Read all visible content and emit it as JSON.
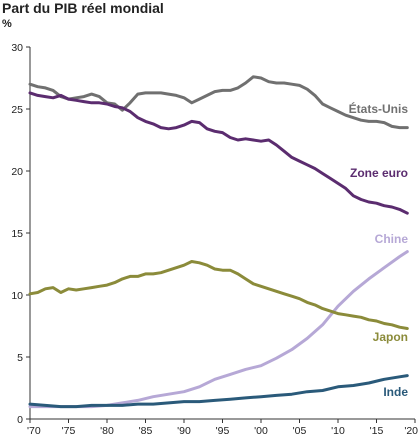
{
  "chart_data": {
    "type": "line",
    "title": "Part du PIB réel mondial",
    "ylabel": "%",
    "ylim": [
      0,
      30
    ],
    "y_ticks": [
      "0",
      "5",
      "10",
      "15",
      "20",
      "25",
      "30"
    ],
    "xlim": [
      1970,
      2020
    ],
    "x_ticks": [
      {
        "value": 1970,
        "label": "'70"
      },
      {
        "value": 1975,
        "label": "'75"
      },
      {
        "value": 1980,
        "label": "'80"
      },
      {
        "value": 1985,
        "label": "'85"
      },
      {
        "value": 1990,
        "label": "'90"
      },
      {
        "value": 1995,
        "label": "'95"
      },
      {
        "value": 2000,
        "label": "'00"
      },
      {
        "value": 2005,
        "label": "'05"
      },
      {
        "value": 2010,
        "label": "'10"
      },
      {
        "value": 2015,
        "label": "'15"
      },
      {
        "value": 2020,
        "label": "'20"
      }
    ],
    "grid": false,
    "legend": "inline labels at right",
    "series": [
      {
        "name": "États-Unis",
        "color": "#707070",
        "x": [
          1970,
          1971,
          1972,
          1973,
          1974,
          1975,
          1976,
          1977,
          1978,
          1979,
          1980,
          1981,
          1982,
          1983,
          1984,
          1985,
          1986,
          1987,
          1988,
          1989,
          1990,
          1991,
          1992,
          1993,
          1994,
          1995,
          1996,
          1997,
          1998,
          1999,
          2000,
          2001,
          2002,
          2003,
          2004,
          2005,
          2006,
          2007,
          2008,
          2009,
          2010,
          2011,
          2012,
          2013,
          2014,
          2015,
          2016,
          2017,
          2018,
          2019
        ],
        "y": [
          27.0,
          26.8,
          26.7,
          26.5,
          26.0,
          25.8,
          25.9,
          26.0,
          26.2,
          26.0,
          25.5,
          25.4,
          24.9,
          25.5,
          26.2,
          26.3,
          26.3,
          26.3,
          26.2,
          26.1,
          25.9,
          25.5,
          25.8,
          26.1,
          26.4,
          26.5,
          26.5,
          26.7,
          27.1,
          27.6,
          27.5,
          27.2,
          27.1,
          27.1,
          27.0,
          26.9,
          26.6,
          26.1,
          25.4,
          25.1,
          24.8,
          24.5,
          24.3,
          24.1,
          24.0,
          24.0,
          23.9,
          23.6,
          23.5,
          23.5
        ]
      },
      {
        "name": "Zone euro",
        "color": "#5b2c6f",
        "x": [
          1970,
          1971,
          1972,
          1973,
          1974,
          1975,
          1976,
          1977,
          1978,
          1979,
          1980,
          1981,
          1982,
          1983,
          1984,
          1985,
          1986,
          1987,
          1988,
          1989,
          1990,
          1991,
          1992,
          1993,
          1994,
          1995,
          1996,
          1997,
          1998,
          1999,
          2000,
          2001,
          2002,
          2003,
          2004,
          2005,
          2006,
          2007,
          2008,
          2009,
          2010,
          2011,
          2012,
          2013,
          2014,
          2015,
          2016,
          2017,
          2018,
          2019
        ],
        "y": [
          26.3,
          26.1,
          26.0,
          25.9,
          26.1,
          25.8,
          25.7,
          25.6,
          25.5,
          25.5,
          25.4,
          25.2,
          25.1,
          24.8,
          24.3,
          24.0,
          23.8,
          23.5,
          23.4,
          23.5,
          23.7,
          24.0,
          23.9,
          23.4,
          23.2,
          23.1,
          22.7,
          22.5,
          22.6,
          22.5,
          22.4,
          22.5,
          22.1,
          21.6,
          21.1,
          20.8,
          20.5,
          20.2,
          19.8,
          19.4,
          19.0,
          18.6,
          18.0,
          17.7,
          17.5,
          17.4,
          17.2,
          17.1,
          16.9,
          16.6
        ]
      },
      {
        "name": "Chine",
        "color": "#b6a8d6",
        "x": [
          1970,
          1972,
          1974,
          1976,
          1978,
          1980,
          1982,
          1984,
          1986,
          1988,
          1990,
          1992,
          1994,
          1996,
          1998,
          2000,
          2002,
          2004,
          2006,
          2008,
          2010,
          2012,
          2014,
          2016,
          2018,
          2019
        ],
        "y": [
          1.0,
          1.0,
          1.0,
          1.0,
          1.0,
          1.1,
          1.3,
          1.5,
          1.8,
          2.0,
          2.2,
          2.6,
          3.2,
          3.6,
          4.0,
          4.3,
          4.9,
          5.6,
          6.5,
          7.6,
          9.1,
          10.3,
          11.3,
          12.2,
          13.1,
          13.5
        ]
      },
      {
        "name": "Japon",
        "color": "#8b8b3a",
        "x": [
          1970,
          1971,
          1972,
          1973,
          1974,
          1975,
          1976,
          1977,
          1978,
          1979,
          1980,
          1981,
          1982,
          1983,
          1984,
          1985,
          1986,
          1987,
          1988,
          1989,
          1990,
          1991,
          1992,
          1993,
          1994,
          1995,
          1996,
          1997,
          1998,
          1999,
          2000,
          2001,
          2002,
          2003,
          2004,
          2005,
          2006,
          2007,
          2008,
          2009,
          2010,
          2011,
          2012,
          2013,
          2014,
          2015,
          2016,
          2017,
          2018,
          2019
        ],
        "y": [
          10.1,
          10.2,
          10.5,
          10.6,
          10.2,
          10.5,
          10.4,
          10.5,
          10.6,
          10.7,
          10.8,
          11.0,
          11.3,
          11.5,
          11.5,
          11.7,
          11.7,
          11.8,
          12.0,
          12.2,
          12.4,
          12.7,
          12.6,
          12.4,
          12.1,
          12.0,
          12.0,
          11.7,
          11.3,
          10.9,
          10.7,
          10.5,
          10.3,
          10.1,
          9.9,
          9.7,
          9.4,
          9.2,
          8.9,
          8.7,
          8.5,
          8.4,
          8.3,
          8.2,
          8.0,
          7.9,
          7.7,
          7.6,
          7.4,
          7.3
        ]
      },
      {
        "name": "Inde",
        "color": "#2a5a7a",
        "x": [
          1970,
          1972,
          1974,
          1976,
          1978,
          1980,
          1982,
          1984,
          1986,
          1988,
          1990,
          1992,
          1994,
          1996,
          1998,
          2000,
          2002,
          2004,
          2006,
          2008,
          2010,
          2012,
          2014,
          2016,
          2018,
          2019
        ],
        "y": [
          1.2,
          1.1,
          1.0,
          1.0,
          1.1,
          1.1,
          1.1,
          1.2,
          1.2,
          1.3,
          1.4,
          1.4,
          1.5,
          1.6,
          1.7,
          1.8,
          1.9,
          2.0,
          2.2,
          2.3,
          2.6,
          2.7,
          2.9,
          3.2,
          3.4,
          3.5
        ]
      }
    ]
  }
}
